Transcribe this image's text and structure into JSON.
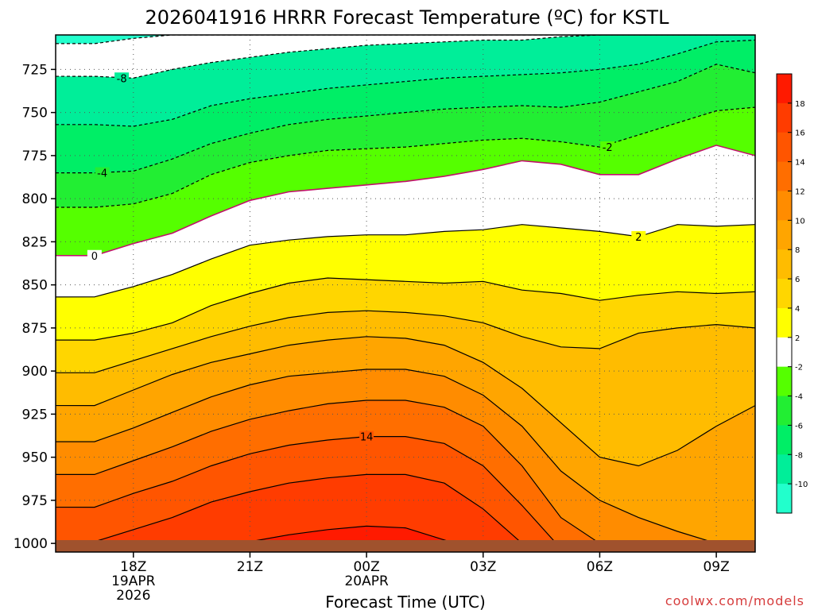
{
  "chart_data": {
    "type": "heatmap",
    "title": "2026041916 HRRR Forecast Temperature (ºC) for KSTL",
    "xlabel": "Forecast Time (UTC)",
    "ylabel": "",
    "credit": "coolwx.com/models",
    "y_axis": {
      "unit": "hPa",
      "reversed": true,
      "range": [
        705,
        1005
      ],
      "ticks": [
        "725",
        "750",
        "775",
        "800",
        "825",
        "850",
        "875",
        "900",
        "925",
        "950",
        "975",
        "1000"
      ]
    },
    "x_axis": {
      "range_hours_utc": [
        16,
        34
      ],
      "ticks": [
        {
          "label": "18Z",
          "sub1": "19APR",
          "sub2": "2026"
        },
        {
          "label": "21Z",
          "sub1": "",
          "sub2": ""
        },
        {
          "label": "00Z",
          "sub1": "20APR",
          "sub2": ""
        },
        {
          "label": "03Z",
          "sub1": "",
          "sub2": ""
        },
        {
          "label": "06Z",
          "sub1": "",
          "sub2": ""
        },
        {
          "label": "09Z",
          "sub1": "",
          "sub2": ""
        }
      ]
    },
    "grid": true,
    "colorbar": {
      "placement": "right",
      "labels": [
        "18",
        "16",
        "14",
        "12",
        "10",
        "8",
        "6",
        "4",
        "2",
        "-2",
        "-4",
        "-6",
        "-8",
        "-10"
      ],
      "colors": [
        "#ff1a00",
        "#ff3c00",
        "#ff5500",
        "#ff6e00",
        "#ff8c00",
        "#ffa500",
        "#ffbc00",
        "#ffd600",
        "#ffff00",
        "#ffffff",
        "#55ff00",
        "#22ee33",
        "#00ee66",
        "#00ee99",
        "#22ffcc"
      ]
    },
    "times": [
      17,
      18,
      19,
      20,
      21,
      22,
      23,
      24,
      25,
      26,
      27,
      28,
      29,
      30,
      31,
      32,
      33,
      34
    ],
    "isotherms": [
      {
        "level": -10,
        "label": "",
        "pressure": [
          710,
          707,
          705,
          705,
          705,
          705,
          705,
          705,
          705,
          705,
          705,
          705,
          705,
          705,
          705,
          705,
          705,
          705
        ]
      },
      {
        "level": -8,
        "label": "-8",
        "pressure": [
          729,
          730,
          725,
          721,
          718,
          715,
          713,
          711,
          710,
          709,
          708,
          708,
          706,
          705,
          705,
          705,
          705,
          705
        ]
      },
      {
        "level": -6,
        "label": "",
        "pressure": [
          757,
          758,
          754,
          746,
          742,
          739,
          736,
          734,
          732,
          730,
          729,
          728,
          727,
          725,
          722,
          716,
          709,
          708
        ]
      },
      {
        "level": -4,
        "label": "-4",
        "pressure": [
          785,
          784,
          777,
          768,
          762,
          757,
          754,
          752,
          750,
          748,
          747,
          746,
          747,
          744,
          738,
          732,
          722,
          727
        ]
      },
      {
        "level": -2,
        "label": "-2",
        "pressure": [
          805,
          803,
          797,
          786,
          779,
          775,
          772,
          771,
          770,
          768,
          766,
          765,
          767,
          770,
          763,
          756,
          749,
          747
        ]
      },
      {
        "level": 0,
        "label": "0",
        "pressure": [
          833,
          826,
          820,
          810,
          801,
          796,
          794,
          792,
          790,
          787,
          783,
          778,
          780,
          786,
          786,
          777,
          769,
          775
        ]
      },
      {
        "level": 2,
        "label": "2",
        "pressure": [
          857,
          851,
          844,
          835,
          827,
          824,
          822,
          821,
          821,
          819,
          818,
          815,
          817,
          819,
          822,
          815,
          816,
          815
        ]
      },
      {
        "level": 4,
        "label": "",
        "pressure": [
          882,
          878,
          872,
          862,
          855,
          849,
          846,
          847,
          848,
          849,
          848,
          853,
          855,
          859,
          856,
          854,
          855,
          854
        ]
      },
      {
        "level": 6,
        "label": "",
        "pressure": [
          901,
          894,
          887,
          880,
          874,
          869,
          866,
          865,
          866,
          868,
          872,
          880,
          886,
          887,
          878,
          875,
          873,
          875
        ]
      },
      {
        "level": 8,
        "label": "",
        "pressure": [
          920,
          911,
          902,
          895,
          890,
          885,
          882,
          880,
          881,
          885,
          895,
          910,
          930,
          950,
          955,
          946,
          932,
          920
        ]
      },
      {
        "level": 10,
        "label": "",
        "pressure": [
          941,
          933,
          924,
          915,
          908,
          903,
          901,
          899,
          899,
          903,
          914,
          932,
          958,
          975,
          985,
          993,
          1000,
          1003
        ]
      },
      {
        "level": 12,
        "label": "",
        "pressure": [
          960,
          952,
          944,
          935,
          928,
          923,
          919,
          917,
          917,
          921,
          932,
          955,
          985,
          1000,
          1004,
          1005,
          1005,
          1005
        ]
      },
      {
        "level": 14,
        "label": "14",
        "pressure": [
          979,
          971,
          964,
          955,
          948,
          943,
          940,
          938,
          938,
          942,
          955,
          978,
          1003,
          1005,
          1005,
          1005,
          1005,
          1005
        ]
      },
      {
        "level": 16,
        "label": "",
        "pressure": [
          999,
          992,
          985,
          976,
          970,
          965,
          962,
          960,
          960,
          965,
          980,
          1000,
          1005,
          1005,
          1005,
          1005,
          1005,
          1005
        ]
      },
      {
        "level": 18,
        "label": "",
        "pressure": [
          1005,
          1005,
          1005,
          1003,
          999,
          995,
          992,
          990,
          991,
          998,
          1005,
          1005,
          1005,
          1005,
          1005,
          1005,
          1005,
          1005
        ]
      },
      {
        "level": 20,
        "label": "",
        "pressure": [
          1005,
          1005,
          1005,
          1005,
          1005,
          1005,
          1005,
          1005,
          1005,
          1005,
          1005,
          1005,
          1005,
          1005,
          1005,
          1005,
          1005,
          1005
        ]
      }
    ]
  }
}
